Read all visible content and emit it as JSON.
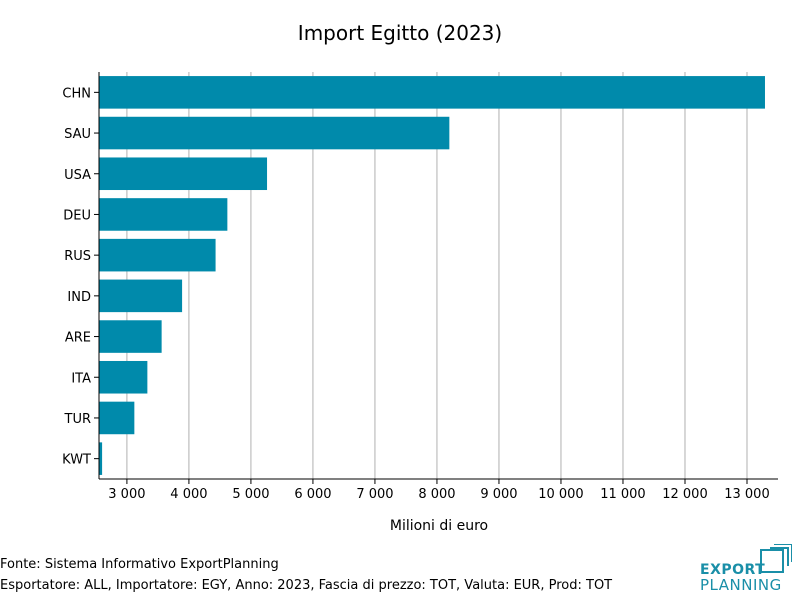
{
  "chart_data": {
    "type": "bar",
    "orientation": "horizontal",
    "title": "Import Egitto (2023)",
    "xlabel": "Milioni di euro",
    "ylabel": "",
    "categories": [
      "CHN",
      "SAU",
      "USA",
      "DEU",
      "RUS",
      "IND",
      "ARE",
      "ITA",
      "TUR",
      "KWT"
    ],
    "values": [
      13290,
      8200,
      5260,
      4620,
      4430,
      3890,
      3560,
      3330,
      3120,
      2600
    ],
    "xlim": [
      2550,
      13500
    ],
    "xticks": [
      3000,
      4000,
      5000,
      6000,
      7000,
      8000,
      9000,
      10000,
      11000,
      12000,
      13000
    ],
    "xtick_labels": [
      "3 000",
      "4 000",
      "5 000",
      "6 000",
      "7 000",
      "8 000",
      "9 000",
      "10 000",
      "11 000",
      "12 000",
      "13 000"
    ],
    "grid": "vertical",
    "bar_color": "#008aab"
  },
  "footer": {
    "source": "Fonte: Sistema Informativo ExportPlanning",
    "details": "Esportatore: ALL, Importatore: EGY, Anno: 2023, Fascia di prezzo: TOT, Valuta: EUR, Prod: TOT"
  },
  "logo": {
    "line1": "EXPORT",
    "line2": "PLANNING",
    "color": "#1a8fa8"
  }
}
